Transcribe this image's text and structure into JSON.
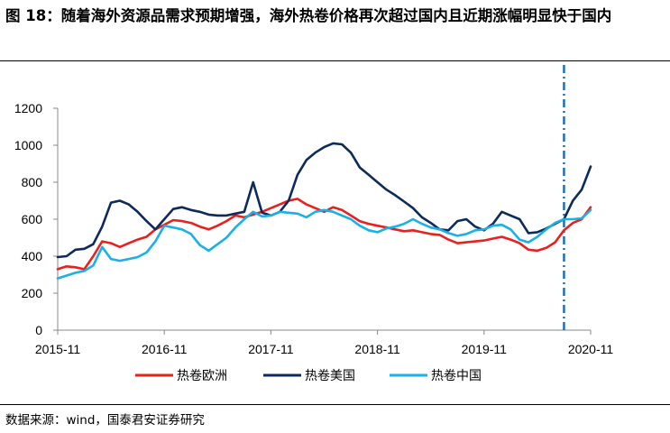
{
  "figure": {
    "title": "图 18：随着海外资源品需求预期增强，海外热卷价格再次超过国内且近期涨幅明显快于国内",
    "source": "数据来源：wind，国泰君安证券研究"
  },
  "chart_data": {
    "type": "line",
    "title": "",
    "xlabel": "",
    "ylabel": "",
    "ylim": [
      0,
      1200
    ],
    "yticks": [
      0,
      200,
      400,
      600,
      800,
      1000,
      1200
    ],
    "xlim": [
      "2015-11",
      "2020-11"
    ],
    "xticks": [
      "2015-11",
      "2016-11",
      "2017-11",
      "2018-11",
      "2019-11",
      "2020-11"
    ],
    "grid": false,
    "legend_position": "bottom",
    "marker_line": {
      "x": "2020-08",
      "style": "dash-dot",
      "color": "#1f6fb5"
    },
    "series": [
      {
        "name": "热卷欧洲",
        "color": "#e8201e",
        "points": [
          [
            "2015-11",
            330
          ],
          [
            "2015-12",
            345
          ],
          [
            "2016-01",
            340
          ],
          [
            "2016-02",
            330
          ],
          [
            "2016-03",
            400
          ],
          [
            "2016-04",
            480
          ],
          [
            "2016-05",
            470
          ],
          [
            "2016-06",
            450
          ],
          [
            "2016-07",
            470
          ],
          [
            "2016-08",
            490
          ],
          [
            "2016-09",
            505
          ],
          [
            "2016-10",
            545
          ],
          [
            "2016-11",
            570
          ],
          [
            "2016-12",
            595
          ],
          [
            "2017-01",
            590
          ],
          [
            "2017-02",
            580
          ],
          [
            "2017-03",
            560
          ],
          [
            "2017-04",
            545
          ],
          [
            "2017-05",
            565
          ],
          [
            "2017-06",
            590
          ],
          [
            "2017-07",
            620
          ],
          [
            "2017-08",
            610
          ],
          [
            "2017-09",
            625
          ],
          [
            "2017-10",
            640
          ],
          [
            "2017-11",
            660
          ],
          [
            "2017-12",
            680
          ],
          [
            "2018-01",
            700
          ],
          [
            "2018-02",
            710
          ],
          [
            "2018-03",
            680
          ],
          [
            "2018-04",
            660
          ],
          [
            "2018-05",
            640
          ],
          [
            "2018-06",
            665
          ],
          [
            "2018-07",
            650
          ],
          [
            "2018-08",
            620
          ],
          [
            "2018-09",
            590
          ],
          [
            "2018-10",
            575
          ],
          [
            "2018-11",
            565
          ],
          [
            "2018-12",
            555
          ],
          [
            "2019-01",
            545
          ],
          [
            "2019-02",
            535
          ],
          [
            "2019-03",
            540
          ],
          [
            "2019-04",
            530
          ],
          [
            "2019-05",
            520
          ],
          [
            "2019-06",
            515
          ],
          [
            "2019-07",
            490
          ],
          [
            "2019-08",
            470
          ],
          [
            "2019-09",
            475
          ],
          [
            "2019-10",
            480
          ],
          [
            "2019-11",
            485
          ],
          [
            "2019-12",
            495
          ],
          [
            "2020-01",
            505
          ],
          [
            "2020-02",
            490
          ],
          [
            "2020-03",
            470
          ],
          [
            "2020-04",
            435
          ],
          [
            "2020-05",
            430
          ],
          [
            "2020-06",
            445
          ],
          [
            "2020-07",
            475
          ],
          [
            "2020-08",
            540
          ],
          [
            "2020-09",
            580
          ],
          [
            "2020-10",
            600
          ],
          [
            "2020-11",
            665
          ]
        ]
      },
      {
        "name": "热卷美国",
        "color": "#0d2a5c",
        "points": [
          [
            "2015-11",
            395
          ],
          [
            "2015-12",
            400
          ],
          [
            "2016-01",
            435
          ],
          [
            "2016-02",
            440
          ],
          [
            "2016-03",
            465
          ],
          [
            "2016-04",
            560
          ],
          [
            "2016-05",
            690
          ],
          [
            "2016-06",
            700
          ],
          [
            "2016-07",
            680
          ],
          [
            "2016-08",
            640
          ],
          [
            "2016-09",
            590
          ],
          [
            "2016-10",
            545
          ],
          [
            "2016-11",
            600
          ],
          [
            "2016-12",
            655
          ],
          [
            "2017-01",
            665
          ],
          [
            "2017-02",
            650
          ],
          [
            "2017-03",
            640
          ],
          [
            "2017-04",
            625
          ],
          [
            "2017-05",
            620
          ],
          [
            "2017-06",
            620
          ],
          [
            "2017-07",
            630
          ],
          [
            "2017-08",
            640
          ],
          [
            "2017-09",
            800
          ],
          [
            "2017-10",
            635
          ],
          [
            "2017-11",
            620
          ],
          [
            "2017-12",
            640
          ],
          [
            "2018-01",
            700
          ],
          [
            "2018-02",
            840
          ],
          [
            "2018-03",
            920
          ],
          [
            "2018-04",
            960
          ],
          [
            "2018-05",
            990
          ],
          [
            "2018-06",
            1010
          ],
          [
            "2018-07",
            1005
          ],
          [
            "2018-08",
            960
          ],
          [
            "2018-09",
            880
          ],
          [
            "2018-10",
            840
          ],
          [
            "2018-11",
            800
          ],
          [
            "2018-12",
            760
          ],
          [
            "2019-01",
            730
          ],
          [
            "2019-02",
            695
          ],
          [
            "2019-03",
            660
          ],
          [
            "2019-04",
            610
          ],
          [
            "2019-05",
            580
          ],
          [
            "2019-06",
            545
          ],
          [
            "2019-07",
            540
          ],
          [
            "2019-08",
            590
          ],
          [
            "2019-09",
            600
          ],
          [
            "2019-10",
            560
          ],
          [
            "2019-11",
            540
          ],
          [
            "2019-12",
            575
          ],
          [
            "2020-01",
            640
          ],
          [
            "2020-02",
            620
          ],
          [
            "2020-03",
            600
          ],
          [
            "2020-04",
            525
          ],
          [
            "2020-05",
            530
          ],
          [
            "2020-06",
            550
          ],
          [
            "2020-07",
            575
          ],
          [
            "2020-08",
            600
          ],
          [
            "2020-09",
            700
          ],
          [
            "2020-10",
            760
          ],
          [
            "2020-11",
            885
          ]
        ]
      },
      {
        "name": "热卷中国",
        "color": "#1ab0e8",
        "points": [
          [
            "2015-11",
            280
          ],
          [
            "2015-12",
            295
          ],
          [
            "2016-01",
            310
          ],
          [
            "2016-02",
            320
          ],
          [
            "2016-03",
            350
          ],
          [
            "2016-04",
            450
          ],
          [
            "2016-05",
            385
          ],
          [
            "2016-06",
            375
          ],
          [
            "2016-07",
            385
          ],
          [
            "2016-08",
            395
          ],
          [
            "2016-09",
            420
          ],
          [
            "2016-10",
            480
          ],
          [
            "2016-11",
            565
          ],
          [
            "2016-12",
            555
          ],
          [
            "2017-01",
            545
          ],
          [
            "2017-02",
            520
          ],
          [
            "2017-03",
            460
          ],
          [
            "2017-04",
            430
          ],
          [
            "2017-05",
            465
          ],
          [
            "2017-06",
            500
          ],
          [
            "2017-07",
            555
          ],
          [
            "2017-08",
            600
          ],
          [
            "2017-09",
            640
          ],
          [
            "2017-10",
            615
          ],
          [
            "2017-11",
            620
          ],
          [
            "2017-12",
            640
          ],
          [
            "2018-01",
            635
          ],
          [
            "2018-02",
            630
          ],
          [
            "2018-03",
            610
          ],
          [
            "2018-04",
            640
          ],
          [
            "2018-05",
            650
          ],
          [
            "2018-06",
            640
          ],
          [
            "2018-07",
            620
          ],
          [
            "2018-08",
            600
          ],
          [
            "2018-09",
            565
          ],
          [
            "2018-10",
            540
          ],
          [
            "2018-11",
            530
          ],
          [
            "2018-12",
            550
          ],
          [
            "2019-01",
            560
          ],
          [
            "2019-02",
            575
          ],
          [
            "2019-03",
            600
          ],
          [
            "2019-04",
            575
          ],
          [
            "2019-05",
            555
          ],
          [
            "2019-06",
            545
          ],
          [
            "2019-07",
            525
          ],
          [
            "2019-08",
            510
          ],
          [
            "2019-09",
            520
          ],
          [
            "2019-10",
            540
          ],
          [
            "2019-11",
            545
          ],
          [
            "2019-12",
            565
          ],
          [
            "2020-01",
            570
          ],
          [
            "2020-02",
            545
          ],
          [
            "2020-03",
            490
          ],
          [
            "2020-04",
            475
          ],
          [
            "2020-05",
            505
          ],
          [
            "2020-06",
            545
          ],
          [
            "2020-07",
            580
          ],
          [
            "2020-08",
            600
          ],
          [
            "2020-09",
            600
          ],
          [
            "2020-10",
            605
          ],
          [
            "2020-11",
            650
          ]
        ]
      }
    ]
  }
}
